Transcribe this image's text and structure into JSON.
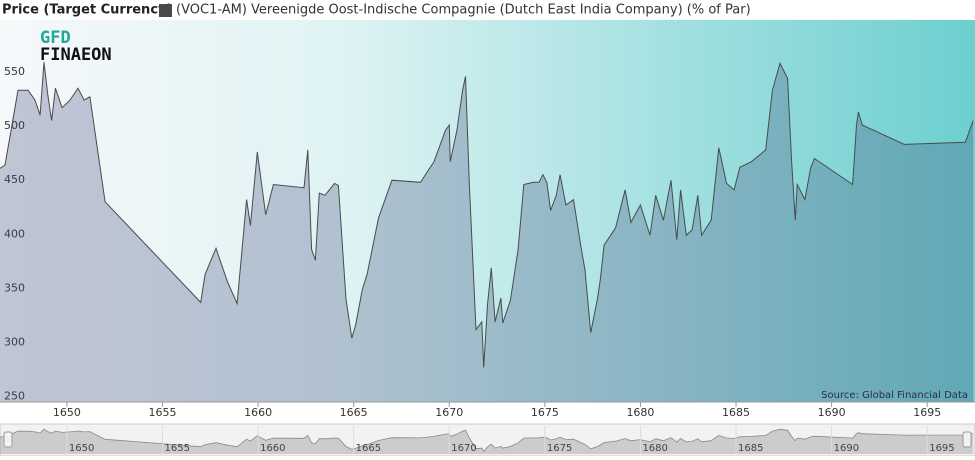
{
  "chart_data": {
    "type": "area",
    "title": "Price (Target Currency)",
    "logo": [
      "GFD",
      "FINAEON"
    ],
    "annotation": "Source: Global Financial Data",
    "series": [
      {
        "name": "(VOC1-AM) Vereenigde Oost-Indische Compagnie (Dutch East India Company) (% of Par)",
        "color": "#4a4a4a",
        "x": [
          1646.5,
          1646.76,
          1647.13,
          1647.44,
          1647.97,
          1648.33,
          1648.6,
          1648.8,
          1649.0,
          1649.2,
          1649.4,
          1649.75,
          1650.16,
          1650.58,
          1650.9,
          1651.2,
          1652.0,
          1657.0,
          1657.23,
          1657.8,
          1658.4,
          1658.9,
          1659.4,
          1659.6,
          1659.96,
          1660.4,
          1660.8,
          1662.4,
          1662.6,
          1662.8,
          1663.0,
          1663.2,
          1663.5,
          1664.0,
          1664.2,
          1664.6,
          1664.9,
          1665.1,
          1665.45,
          1665.7,
          1666.3,
          1667.0,
          1668.5,
          1668.9,
          1669.2,
          1669.8,
          1670.0,
          1670.05,
          1670.4,
          1670.7,
          1670.85,
          1671.05,
          1671.4,
          1671.7,
          1671.8,
          1672.0,
          1672.2,
          1672.4,
          1672.7,
          1672.8,
          1673.2,
          1673.6,
          1673.9,
          1674.4,
          1674.7,
          1674.9,
          1675.1,
          1675.3,
          1675.6,
          1675.8,
          1676.1,
          1676.5,
          1676.9,
          1677.1,
          1677.4,
          1677.75,
          1677.9,
          1678.1,
          1678.7,
          1679.2,
          1679.5,
          1680.0,
          1680.5,
          1680.8,
          1681.2,
          1681.6,
          1681.9,
          1682.1,
          1682.4,
          1682.7,
          1683.0,
          1683.2,
          1683.7,
          1684.1,
          1684.5,
          1684.9,
          1685.2,
          1685.8,
          1686.55,
          1686.9,
          1687.3,
          1687.7,
          1687.9,
          1688.1,
          1688.2,
          1688.6,
          1688.9,
          1689.1,
          1691.1,
          1691.3,
          1691.4,
          1691.6,
          1693.8,
          1697.0,
          1697.4
        ],
        "values": [
          461,
          464,
          501,
          533,
          533,
          524,
          510,
          559,
          529,
          505,
          535,
          517,
          524,
          535,
          524,
          527,
          430,
          337,
          363,
          387,
          356,
          336,
          432,
          408,
          476,
          418,
          446,
          443,
          478,
          386,
          376,
          438,
          436,
          447,
          445,
          340,
          304,
          316,
          349,
          363,
          415,
          450,
          448,
          459,
          467,
          496,
          501,
          467,
          496,
          533,
          546,
          447,
          312,
          319,
          277,
          335,
          369,
          319,
          341,
          318,
          339,
          386,
          446,
          448,
          448,
          455,
          448,
          422,
          436,
          455,
          427,
          432,
          387,
          367,
          309,
          340,
          358,
          390,
          406,
          441,
          411,
          427,
          399,
          436,
          413,
          450,
          395,
          441,
          399,
          404,
          436,
          399,
          413,
          480,
          447,
          441,
          462,
          467,
          478,
          533,
          558,
          544,
          469,
          413,
          446,
          432,
          461,
          470,
          446,
          501,
          513,
          501,
          483,
          485,
          505
        ]
      }
    ],
    "xlim": [
      1646.5,
      1697.5
    ],
    "ylim": [
      245,
      598
    ],
    "xticks": [
      1650,
      1655,
      1660,
      1665,
      1670,
      1675,
      1680,
      1685,
      1690,
      1695
    ],
    "yticks": [
      250,
      300,
      350,
      400,
      450,
      500,
      550
    ]
  }
}
